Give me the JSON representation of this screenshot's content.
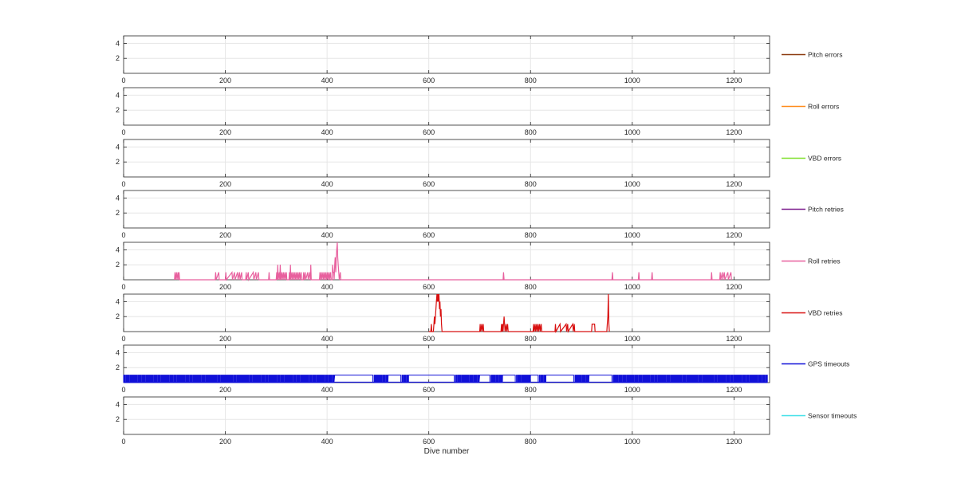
{
  "chart_data": {
    "type": "line",
    "xlabel": "Dive number",
    "xlim": [
      0,
      1270
    ],
    "ylim": [
      0,
      5
    ],
    "xticks": [
      0,
      200,
      400,
      600,
      800,
      1000,
      1200
    ],
    "yticks": [
      2,
      4
    ],
    "grid": true,
    "legend_placement": "right",
    "panels": [
      {
        "name": "Pitch errors",
        "color": "#8B3A0F",
        "points": []
      },
      {
        "name": "Roll errors",
        "color": "#FF8C1A",
        "points": []
      },
      {
        "name": "VBD errors",
        "color": "#7FE02A",
        "points": []
      },
      {
        "name": "Pitch retries",
        "color": "#7A1A8C",
        "points": []
      },
      {
        "name": "Roll retries",
        "color": "#E8609E",
        "points": [
          [
            100,
            0
          ],
          [
            101,
            1
          ],
          [
            102,
            0
          ],
          [
            104,
            1
          ],
          [
            105,
            0
          ],
          [
            107,
            1
          ],
          [
            108,
            0
          ],
          [
            109,
            1
          ],
          [
            110,
            0
          ],
          [
            180,
            0
          ],
          [
            181,
            1
          ],
          [
            182,
            0
          ],
          [
            187,
            1
          ],
          [
            188,
            0
          ],
          [
            200,
            0
          ],
          [
            201,
            1
          ],
          [
            202,
            0
          ],
          [
            213,
            1
          ],
          [
            214,
            0
          ],
          [
            218,
            1
          ],
          [
            219,
            0
          ],
          [
            224,
            1
          ],
          [
            225,
            0
          ],
          [
            228,
            1
          ],
          [
            229,
            0
          ],
          [
            232,
            1
          ],
          [
            233,
            0
          ],
          [
            240,
            0
          ],
          [
            241,
            1
          ],
          [
            242,
            0
          ],
          [
            245,
            1
          ],
          [
            246,
            0
          ],
          [
            255,
            1
          ],
          [
            256,
            0
          ],
          [
            260,
            1
          ],
          [
            261,
            0
          ],
          [
            265,
            1
          ],
          [
            266,
            0
          ],
          [
            285,
            0
          ],
          [
            286,
            1
          ],
          [
            287,
            0
          ],
          [
            300,
            0
          ],
          [
            301,
            1
          ],
          [
            302,
            0
          ],
          [
            303,
            2
          ],
          [
            304,
            0
          ],
          [
            306,
            1
          ],
          [
            307,
            0
          ],
          [
            308,
            2
          ],
          [
            309,
            0
          ],
          [
            311,
            1
          ],
          [
            312,
            0
          ],
          [
            314,
            1
          ],
          [
            315,
            0
          ],
          [
            317,
            1
          ],
          [
            318,
            0
          ],
          [
            320,
            1
          ],
          [
            321,
            0
          ],
          [
            325,
            0
          ],
          [
            326,
            1
          ],
          [
            327,
            0
          ],
          [
            328,
            2
          ],
          [
            329,
            0
          ],
          [
            331,
            1
          ],
          [
            332,
            0
          ],
          [
            334,
            1
          ],
          [
            335,
            0
          ],
          [
            337,
            1
          ],
          [
            338,
            0
          ],
          [
            340,
            1
          ],
          [
            341,
            0
          ],
          [
            343,
            1
          ],
          [
            344,
            0
          ],
          [
            346,
            1
          ],
          [
            347,
            0
          ],
          [
            349,
            1
          ],
          [
            350,
            0
          ],
          [
            353,
            0
          ],
          [
            354,
            1
          ],
          [
            355,
            0
          ],
          [
            357,
            1
          ],
          [
            358,
            0
          ],
          [
            362,
            1
          ],
          [
            363,
            0
          ],
          [
            366,
            1
          ],
          [
            367,
            0
          ],
          [
            368,
            2
          ],
          [
            369,
            0
          ],
          [
            385,
            0
          ],
          [
            386,
            1
          ],
          [
            387,
            0
          ],
          [
            389,
            1
          ],
          [
            390,
            0
          ],
          [
            392,
            1
          ],
          [
            393,
            0
          ],
          [
            395,
            1
          ],
          [
            396,
            0
          ],
          [
            398,
            1
          ],
          [
            399,
            0
          ],
          [
            401,
            1
          ],
          [
            402,
            0
          ],
          [
            404,
            1
          ],
          [
            405,
            0
          ],
          [
            407,
            1
          ],
          [
            408,
            0
          ],
          [
            410,
            0
          ],
          [
            411,
            2
          ],
          [
            412,
            1
          ],
          [
            413,
            1
          ],
          [
            414,
            0
          ],
          [
            415,
            2
          ],
          [
            416,
            3
          ],
          [
            417,
            1
          ],
          [
            418,
            3
          ],
          [
            419,
            4
          ],
          [
            420,
            5
          ],
          [
            421,
            3
          ],
          [
            422,
            2
          ],
          [
            423,
            1
          ],
          [
            424,
            0
          ],
          [
            426,
            1
          ],
          [
            427,
            0
          ],
          [
            746,
            0
          ],
          [
            747,
            1
          ],
          [
            748,
            0
          ],
          [
            960,
            0
          ],
          [
            961,
            1
          ],
          [
            962,
            0
          ],
          [
            1012,
            0
          ],
          [
            1013,
            1
          ],
          [
            1014,
            0
          ],
          [
            1038,
            0
          ],
          [
            1039,
            1
          ],
          [
            1040,
            0
          ],
          [
            1155,
            0
          ],
          [
            1156,
            1
          ],
          [
            1157,
            0
          ],
          [
            1172,
            0
          ],
          [
            1173,
            1
          ],
          [
            1174,
            0
          ],
          [
            1177,
            1
          ],
          [
            1178,
            0
          ],
          [
            1181,
            1
          ],
          [
            1182,
            0
          ],
          [
            1188,
            1
          ],
          [
            1189,
            0
          ],
          [
            1194,
            1
          ],
          [
            1195,
            0
          ]
        ]
      },
      {
        "name": "VBD retries",
        "color": "#D81010",
        "points": [
          [
            600,
            0
          ],
          [
            604,
            0
          ],
          [
            605,
            1
          ],
          [
            606,
            0
          ],
          [
            609,
            0
          ],
          [
            610,
            1
          ],
          [
            611,
            2
          ],
          [
            612,
            1
          ],
          [
            613,
            2
          ],
          [
            614,
            3
          ],
          [
            615,
            4
          ],
          [
            616,
            5
          ],
          [
            617,
            4
          ],
          [
            618,
            5
          ],
          [
            619,
            4
          ],
          [
            620,
            5
          ],
          [
            621,
            3
          ],
          [
            622,
            4
          ],
          [
            623,
            2
          ],
          [
            624,
            3
          ],
          [
            625,
            1
          ],
          [
            626,
            0
          ],
          [
            700,
            0
          ],
          [
            701,
            1
          ],
          [
            702,
            0
          ],
          [
            704,
            1
          ],
          [
            705,
            0
          ],
          [
            707,
            1
          ],
          [
            708,
            0
          ],
          [
            742,
            0
          ],
          [
            743,
            1
          ],
          [
            744,
            0
          ],
          [
            745,
            1
          ],
          [
            746,
            0
          ],
          [
            747,
            1
          ],
          [
            748,
            2
          ],
          [
            749,
            1
          ],
          [
            750,
            0
          ],
          [
            752,
            1
          ],
          [
            753,
            0
          ],
          [
            755,
            1
          ],
          [
            756,
            0
          ],
          [
            805,
            0
          ],
          [
            806,
            1
          ],
          [
            807,
            0
          ],
          [
            809,
            1
          ],
          [
            810,
            0
          ],
          [
            812,
            1
          ],
          [
            813,
            0
          ],
          [
            815,
            1
          ],
          [
            816,
            0
          ],
          [
            818,
            1
          ],
          [
            819,
            0
          ],
          [
            821,
            1
          ],
          [
            822,
            0
          ],
          [
            848,
            0
          ],
          [
            849,
            1
          ],
          [
            850,
            0
          ],
          [
            858,
            1
          ],
          [
            859,
            0
          ],
          [
            870,
            1
          ],
          [
            871,
            0
          ],
          [
            873,
            1
          ],
          [
            874,
            0
          ],
          [
            883,
            1
          ],
          [
            884,
            0
          ],
          [
            886,
            1
          ],
          [
            887,
            0
          ],
          [
            920,
            0
          ],
          [
            921,
            1
          ],
          [
            926,
            1
          ],
          [
            927,
            0
          ],
          [
            950,
            0
          ],
          [
            951,
            1
          ],
          [
            952,
            2
          ],
          [
            953,
            5
          ],
          [
            954,
            1
          ],
          [
            955,
            0
          ]
        ]
      },
      {
        "name": "GPS timeouts",
        "color": "#1010D8",
        "points": []
      },
      {
        "name": "Sensor timeouts",
        "color": "#3FE0E8",
        "points": []
      }
    ]
  }
}
